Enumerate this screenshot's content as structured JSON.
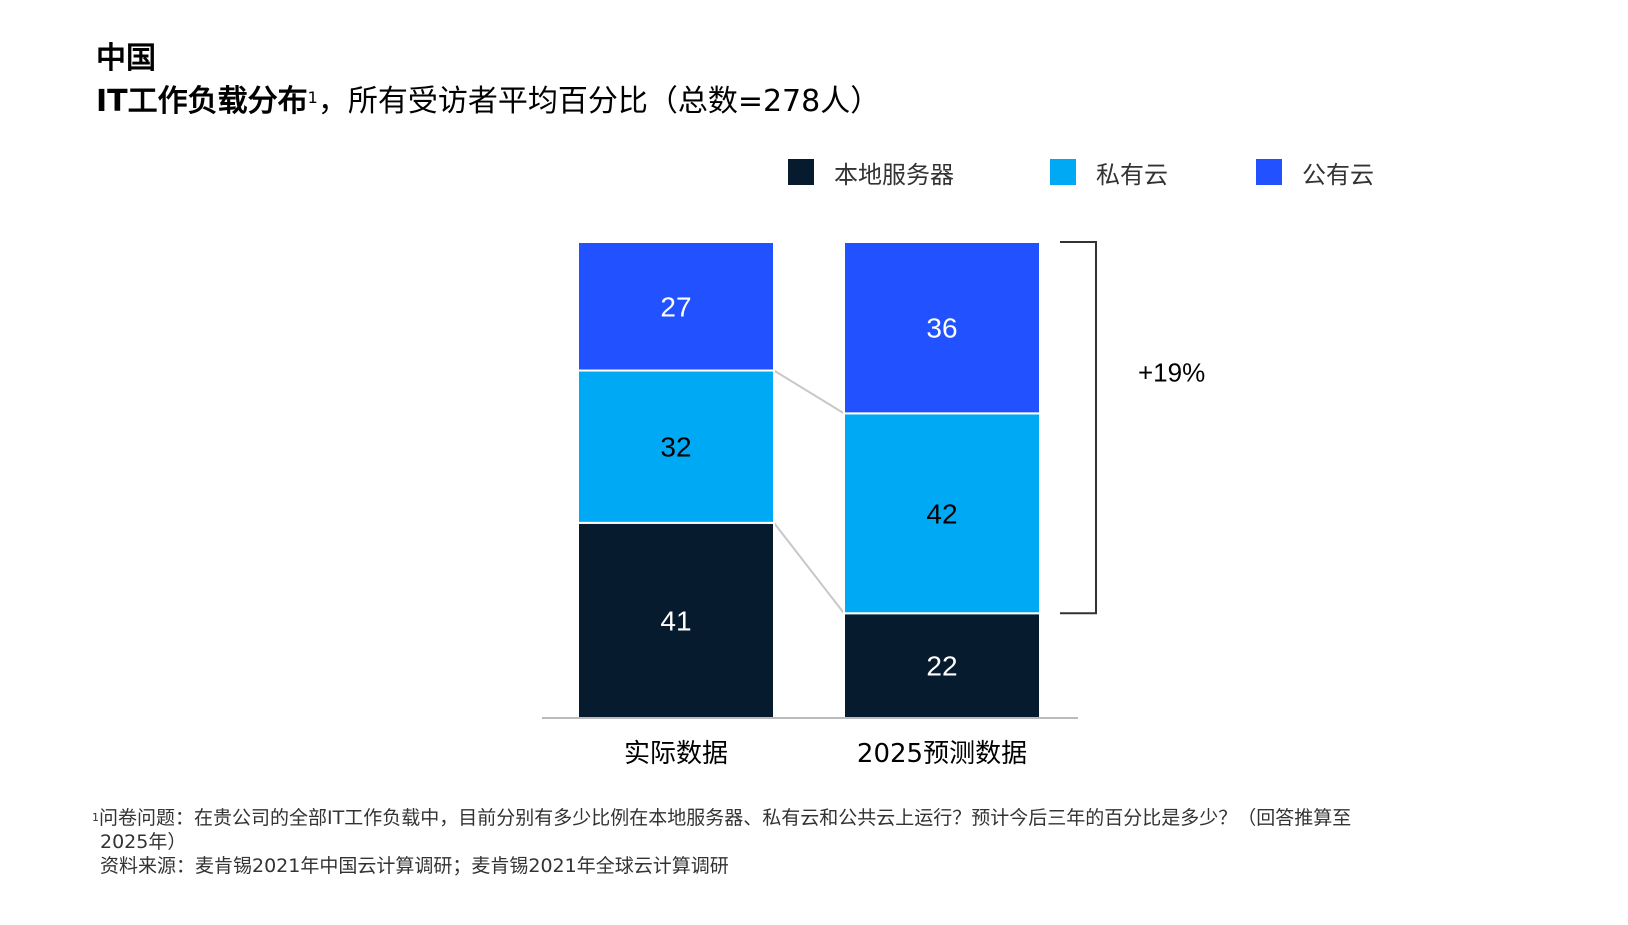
{
  "header": {
    "region": "中国",
    "title_bold": "IT工作负载分布",
    "title_sup": "1",
    "title_rest": "，所有受访者平均百分比（总数=278人）"
  },
  "legend": [
    {
      "label": "本地服务器",
      "color": "#061C2E"
    },
    {
      "label": "私有云",
      "color": "#00A9F4"
    },
    {
      "label": "公有云",
      "color": "#2251FF"
    }
  ],
  "chart_data": {
    "type": "bar",
    "stacked": true,
    "categories": [
      "实际数据",
      "2025预测数据"
    ],
    "series": [
      {
        "name": "本地服务器",
        "color": "#061C2E",
        "values": [
          41,
          22
        ]
      },
      {
        "name": "私有云",
        "color": "#00A9F4",
        "values": [
          32,
          42
        ]
      },
      {
        "name": "公有云",
        "color": "#2251FF",
        "values": [
          27,
          36
        ]
      }
    ],
    "ylim": [
      0,
      100
    ],
    "annotation": "+19%",
    "grid": false,
    "legend_position": "top-right"
  },
  "footnotes": {
    "sup": "1",
    "line1": "问卷问题：在贵公司的全部IT工作负载中，目前分别有多少比例在本地服务器、私有云和公共云上运行？预计今后三年的百分比是多少？（回答推算至",
    "line2": "2025年）",
    "source": "资料来源：麦肯锡2021年中国云计算调研；麦肯锡2021年全球云计算调研"
  }
}
